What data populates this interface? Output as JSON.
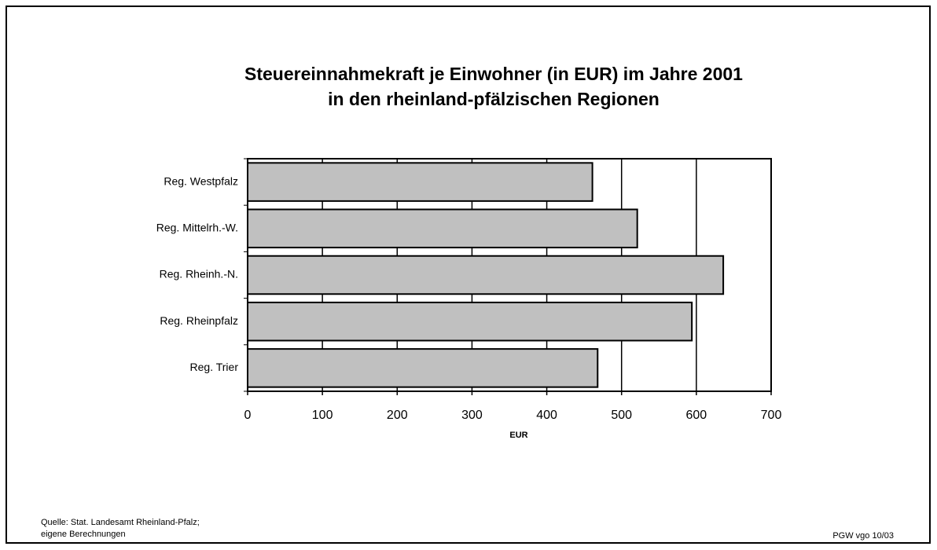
{
  "chart_data": {
    "type": "bar",
    "orientation": "horizontal",
    "title": [
      "Steuereinnahmekraft je Einwohner (in EUR) im Jahre 2001",
      "in den rheinland-pfälzischen Regionen"
    ],
    "categories": [
      "Reg. Westpfalz",
      "Reg. Mittelrh.-W.",
      "Reg. Rheinh.-N.",
      "Reg. Rheinpfalz",
      "Reg. Trier"
    ],
    "values": [
      461,
      521,
      636,
      594,
      468
    ],
    "color": "#c0c0c0",
    "xlabel": "EUR",
    "xlim": [
      0,
      700
    ],
    "xticks": [
      0,
      100,
      200,
      300,
      400,
      500,
      600,
      700
    ],
    "grid": true,
    "source": [
      "Quelle: Stat. Landesamt Rheinland-Pfalz;",
      "eigene Berechnungen"
    ],
    "note": "PGW vgo 10/03"
  }
}
